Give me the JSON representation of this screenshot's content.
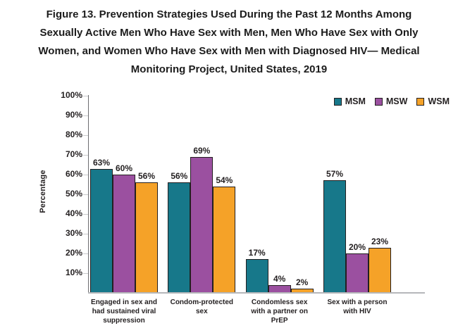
{
  "figure": {
    "title_lines": [
      "Figure 13. Prevention Strategies Used During the Past 12 Months Among",
      "Sexually Active Men Who Have Sex with Men, Men Who Have Sex with Only",
      "Women, and Women Who Have Sex with Men with Diagnosed HIV— Medical",
      "Monitoring Project, United States, 2019"
    ]
  },
  "chart_data": {
    "type": "bar",
    "title": "Figure 13. Prevention Strategies Used During the Past 12 Months Among Sexually Active Men Who Have Sex with Men, Men Who Have Sex with Only Women, and Women Who Have Sex with Men with Diagnosed HIV— Medical Monitoring Project, United States, 2019",
    "xlabel": "",
    "ylabel": "Percentage",
    "ylim": [
      0,
      100
    ],
    "ytick_interval": 10,
    "ytick_suffix": "%",
    "grid": false,
    "legend_position": "top-right",
    "categories": [
      "Engaged in sex and\nhad sustained viral\nsuppression",
      "Condom-protected\nsex",
      "Condomless sex\nwith a partner on\nPrEP",
      "Sex with a person\nwith HIV"
    ],
    "series": [
      {
        "name": "MSM",
        "color": "#17788a",
        "values": [
          63,
          56,
          17,
          57
        ]
      },
      {
        "name": "MSW",
        "color": "#9b50a0",
        "values": [
          60,
          69,
          4,
          20
        ]
      },
      {
        "name": "WSM",
        "color": "#f5a228",
        "values": [
          56,
          54,
          2,
          23
        ]
      }
    ],
    "value_label_suffix": "%"
  },
  "colors": {
    "background": "#ffffff",
    "text": "#231f20",
    "bar_border": "#231f20",
    "axis_line": "#6d6e71",
    "tick_mark": "#c9cacc",
    "baseline": "#b5b7ba"
  }
}
